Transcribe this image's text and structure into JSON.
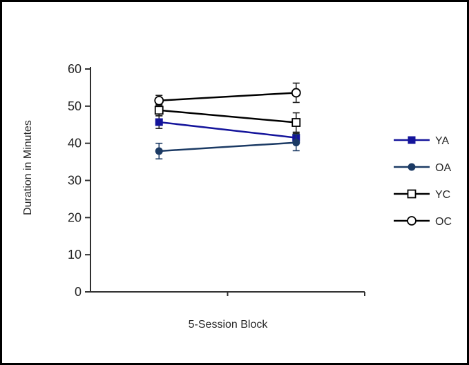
{
  "figure": {
    "background": "#ffffff",
    "border_color": "#000000",
    "axis_color": "#303030",
    "text_color": "#262626"
  },
  "chart_data": {
    "type": "line",
    "title": "",
    "xlabel": "5-Session Block",
    "ylabel": "Duration in Minutes",
    "ylim": [
      0,
      60
    ],
    "yticks": [
      0,
      10,
      20,
      30,
      40,
      50,
      60
    ],
    "categories": [
      1,
      2
    ],
    "category_labels_visible": false,
    "grid": false,
    "legend_position": "right",
    "series": [
      {
        "name": "YA",
        "values": [
          45.7,
          41.5
        ],
        "errors": [
          1.7,
          1.2
        ],
        "color": "#14149b",
        "error_color": "#1a1a1a",
        "marker": "square-filled"
      },
      {
        "name": "OA",
        "values": [
          37.9,
          40.2
        ],
        "errors": [
          2.1,
          2.2
        ],
        "color": "#1b3a64",
        "error_color": "#1b3a64",
        "marker": "circle-filled"
      },
      {
        "name": "YC",
        "values": [
          48.9,
          45.6
        ],
        "errors": [
          1.5,
          2.6
        ],
        "color": "#000000",
        "error_color": "#1a1a1a",
        "marker": "square-open"
      },
      {
        "name": "OC",
        "values": [
          51.5,
          53.6
        ],
        "errors": [
          1.4,
          2.6
        ],
        "color": "#000000",
        "error_color": "#1a1a1a",
        "marker": "circle-open"
      }
    ]
  }
}
